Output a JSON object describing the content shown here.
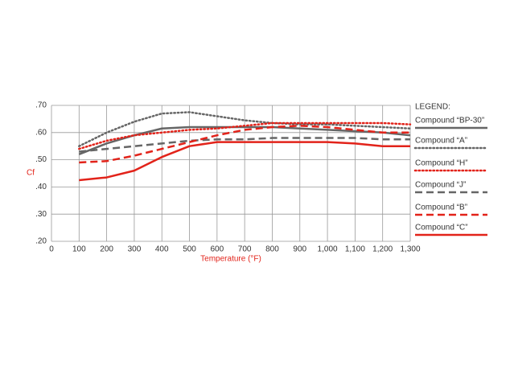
{
  "chart_data": {
    "type": "line",
    "y_label": "Cf",
    "x_label": "Temperature (°F)",
    "legend_title": "LEGEND:",
    "x": [
      100,
      200,
      300,
      400,
      500,
      600,
      700,
      800,
      900,
      1000,
      1100,
      1200,
      1300
    ],
    "series": [
      {
        "name": "Compound “BP-30”",
        "color": "#666666",
        "style": "solid",
        "values": [
          0.52,
          0.56,
          0.59,
          0.615,
          0.62,
          0.62,
          0.62,
          0.62,
          0.615,
          0.61,
          0.605,
          0.6,
          0.59
        ]
      },
      {
        "name": "Compound “A”",
        "color": "#666666",
        "style": "dotted",
        "values": [
          0.55,
          0.6,
          0.64,
          0.67,
          0.675,
          0.66,
          0.645,
          0.635,
          0.63,
          0.63,
          0.625,
          0.62,
          0.615
        ]
      },
      {
        "name": "Compound “H”",
        "color": "#e2231a",
        "style": "dotted",
        "values": [
          0.54,
          0.57,
          0.59,
          0.6,
          0.61,
          0.615,
          0.625,
          0.635,
          0.635,
          0.635,
          0.635,
          0.635,
          0.63
        ]
      },
      {
        "name": "Compound “J”",
        "color": "#666666",
        "style": "dashed",
        "values": [
          0.53,
          0.54,
          0.55,
          0.56,
          0.57,
          0.575,
          0.575,
          0.58,
          0.58,
          0.58,
          0.58,
          0.575,
          0.575
        ]
      },
      {
        "name": "Compound “B”",
        "color": "#e2231a",
        "style": "dashed",
        "values": [
          0.49,
          0.495,
          0.515,
          0.54,
          0.565,
          0.59,
          0.61,
          0.62,
          0.625,
          0.62,
          0.61,
          0.6,
          0.6
        ]
      },
      {
        "name": "Compound “C”",
        "color": "#e2231a",
        "style": "solid",
        "values": [
          0.425,
          0.435,
          0.46,
          0.51,
          0.55,
          0.565,
          0.565,
          0.565,
          0.565,
          0.565,
          0.56,
          0.55,
          0.55
        ]
      }
    ],
    "xlim": [
      0,
      1300
    ],
    "xticks": [
      0,
      100,
      200,
      300,
      400,
      500,
      600,
      700,
      800,
      900,
      {
        "value": 1000,
        "label": "1,000"
      },
      {
        "value": 1100,
        "label": "1,100"
      },
      {
        "value": 1200,
        "label": "1,200"
      },
      {
        "value": 1300,
        "label": "1,300"
      }
    ],
    "ylim": [
      0.2,
      0.7
    ],
    "yticks": [
      {
        "value": 0.2,
        "label": ".20"
      },
      {
        "value": 0.3,
        "label": ".30"
      },
      {
        "value": 0.4,
        "label": ".40"
      },
      {
        "value": 0.5,
        "label": ".50"
      },
      {
        "value": 0.6,
        "label": ".60"
      },
      {
        "value": 0.7,
        "label": ".70"
      }
    ],
    "grid": true,
    "legend": "right"
  }
}
